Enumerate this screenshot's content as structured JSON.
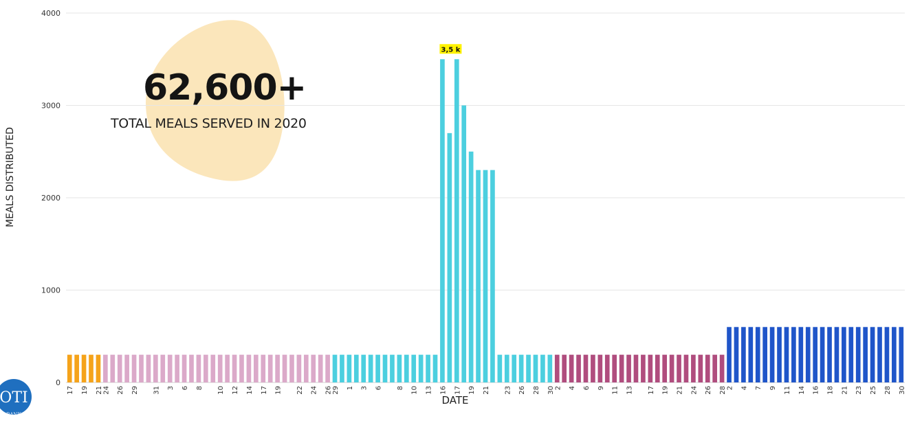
{
  "headline": {
    "number": "62,600+",
    "caption": "TOTAL MEALS SERVED IN 2020"
  },
  "logo": {
    "text": "OTI",
    "subtext": "BANK"
  },
  "colors": {
    "orange": "#f5a31a",
    "pink": "#dba9c9",
    "cyan": "#4ccfdf",
    "magenta": "#b04d7e",
    "blue": "#1f55c9",
    "blob": "#fbe6bb",
    "highlight": "#fff200",
    "grid": "#e6e6e6",
    "logo": "#1f6fbf"
  },
  "chart_data": {
    "type": "bar",
    "title": "",
    "xlabel": "DATE",
    "ylabel": "MEALS DISTRIBUTED",
    "ylim": [
      0,
      4000
    ],
    "yticks": [
      0,
      1000,
      2000,
      3000,
      4000
    ],
    "grid": true,
    "annotation": {
      "text": "3,5 k",
      "segment": 2,
      "index": 15
    },
    "segments": [
      {
        "color": "#f5a31a",
        "values": [
          300,
          300,
          300,
          300,
          300
        ],
        "ticks": [
          "17",
          "19",
          "21"
        ]
      },
      {
        "color": "#dba9c9",
        "values": [
          300,
          300,
          300,
          300,
          300,
          300,
          300,
          300,
          300,
          300,
          300,
          300,
          300,
          300,
          300,
          300,
          300,
          300,
          300,
          300,
          300,
          300,
          300,
          300,
          300,
          300,
          300,
          300,
          300,
          300,
          300,
          300
        ],
        "ticks": [
          "24",
          "26",
          "29",
          "31",
          "3",
          "6",
          "8",
          "10",
          "12",
          "14",
          "17",
          "19",
          "22",
          "24",
          "26"
        ]
      },
      {
        "color": "#4ccfdf",
        "values": [
          300,
          300,
          300,
          300,
          300,
          300,
          300,
          300,
          300,
          300,
          300,
          300,
          300,
          300,
          300,
          3500,
          2700,
          3500,
          3000,
          2500,
          2300,
          2300,
          2300,
          300,
          300,
          300,
          300,
          300,
          300,
          300,
          300
        ],
        "ticks": [
          "29",
          "1",
          "3",
          "6",
          "8",
          "10",
          "13",
          "16",
          "17",
          "19",
          "21",
          "23",
          "26",
          "28",
          "30"
        ]
      },
      {
        "color": "#b04d7e",
        "values": [
          300,
          300,
          300,
          300,
          300,
          300,
          300,
          300,
          300,
          300,
          300,
          300,
          300,
          300,
          300,
          300,
          300,
          300,
          300,
          300,
          300,
          300,
          300,
          300
        ],
        "ticks": [
          "2",
          "4",
          "6",
          "9",
          "11",
          "13",
          "17",
          "19",
          "21",
          "24",
          "26",
          "28"
        ]
      },
      {
        "color": "#1f55c9",
        "values": [
          600,
          600,
          600,
          600,
          600,
          600,
          600,
          600,
          600,
          600,
          600,
          600,
          600,
          600,
          600,
          600,
          600,
          600,
          600,
          600,
          600,
          600,
          600,
          600,
          600
        ],
        "ticks": [
          "2",
          "4",
          "7",
          "9",
          "11",
          "14",
          "16",
          "18",
          "21",
          "23",
          "25",
          "28",
          "30"
        ]
      }
    ]
  }
}
